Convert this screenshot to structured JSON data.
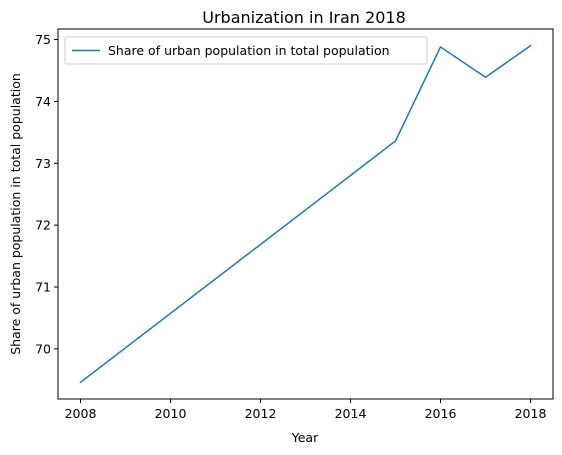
{
  "chart_data": {
    "type": "line",
    "title": "Urbanization in Iran 2018",
    "xlabel": "Year",
    "ylabel": "Share of urban population in total population",
    "x": [
      2008,
      2015,
      2016,
      2017,
      2018
    ],
    "series": [
      {
        "name": "Share of urban population in total population",
        "values": [
          69.46,
          73.36,
          74.88,
          74.39,
          74.9
        ],
        "color": "#1f77b4"
      }
    ],
    "xticks": [
      2008,
      2010,
      2012,
      2014,
      2016,
      2018
    ],
    "yticks": [
      70,
      71,
      72,
      73,
      74,
      75
    ],
    "xlim": [
      2007.5,
      2018.5
    ],
    "ylim": [
      69.19,
      75.17
    ],
    "grid": false,
    "legend_position": "upper-left"
  }
}
